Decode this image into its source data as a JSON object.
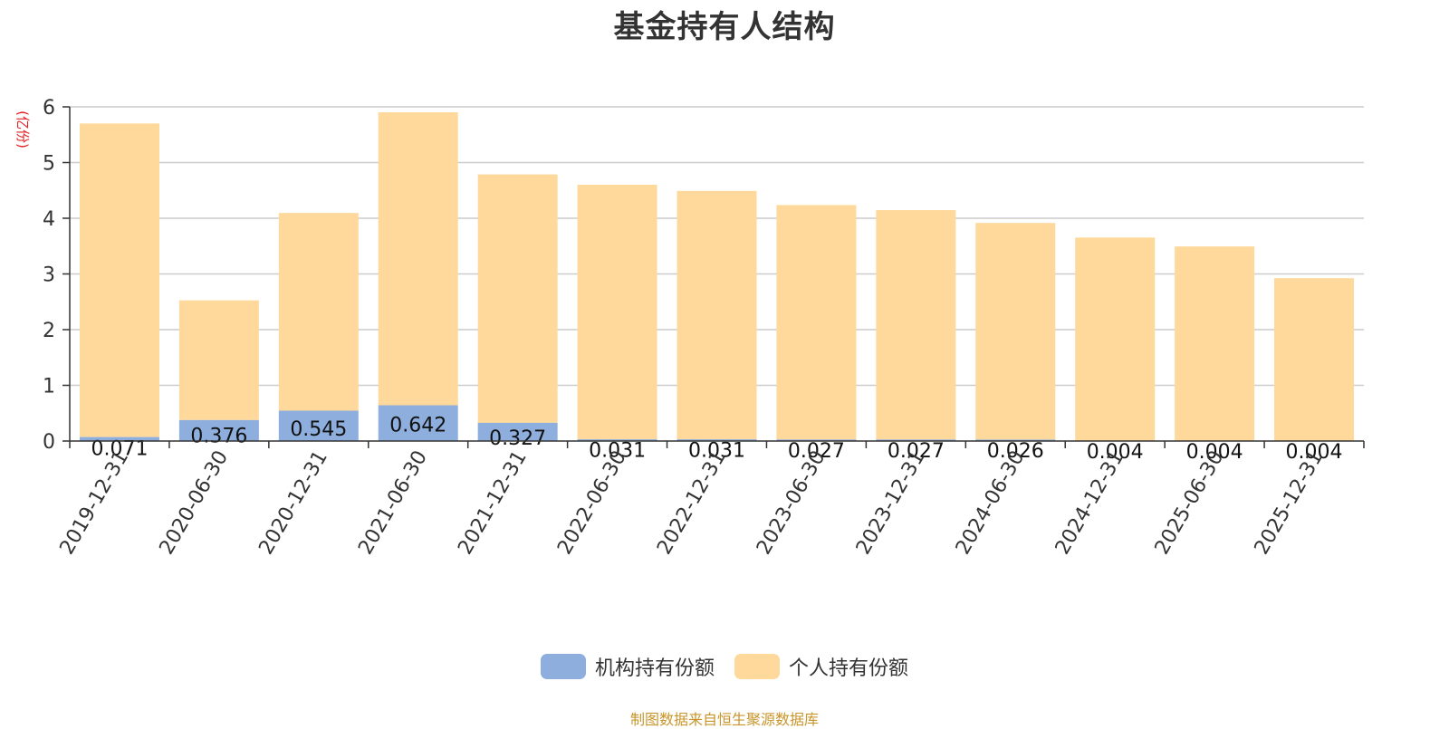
{
  "chart_data": {
    "type": "bar",
    "stacked": true,
    "title": "基金持有人结构",
    "ylabel": "(亿份)",
    "ylim": [
      0,
      6
    ],
    "yticks": [
      0,
      1,
      2,
      3,
      4,
      5,
      6
    ],
    "grid": true,
    "legend_position": "bottom",
    "categories": [
      "2019-12-31",
      "2020-06-30",
      "2020-12-31",
      "2021-06-30",
      "2021-12-31",
      "2022-06-30",
      "2022-12-31",
      "2023-06-30",
      "2023-12-31",
      "2024-06-30",
      "2024-12-31",
      "2025-06-30",
      "2025-12-31"
    ],
    "series": [
      {
        "name": "机构持有份额",
        "color": "#8eaedd",
        "values": [
          0.071,
          0.376,
          0.545,
          0.642,
          0.327,
          0.031,
          0.031,
          0.027,
          0.027,
          0.026,
          0.004,
          0.004,
          0.004
        ],
        "labels": [
          "0.071",
          "0.376",
          "0.545",
          "0.642",
          "0.327",
          "0.031",
          "0.031",
          "0.027",
          "0.027",
          "0.026",
          "0.004",
          "0.004",
          "0.004"
        ]
      },
      {
        "name": "个人持有份额",
        "color": "#fed99b",
        "values": [
          5.63,
          2.15,
          3.55,
          5.26,
          4.46,
          4.57,
          4.46,
          4.21,
          4.12,
          3.89,
          3.65,
          3.49,
          2.92
        ]
      }
    ],
    "source": "制图数据来自恒生聚源数据库"
  }
}
